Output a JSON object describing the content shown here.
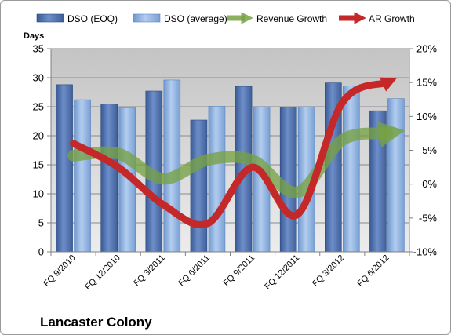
{
  "chart_data": {
    "type": "bar",
    "title": "Lancaster Colony",
    "ylabel": "Days",
    "y2label": "",
    "ylim": [
      0,
      35
    ],
    "y2lim": [
      -10,
      20
    ],
    "yticks": [
      0,
      5,
      10,
      15,
      20,
      25,
      30,
      35
    ],
    "y2ticks": [
      "-10%",
      "-5%",
      "0%",
      "5%",
      "10%",
      "15%",
      "20%"
    ],
    "y2tick_values": [
      -10,
      -5,
      0,
      5,
      10,
      15,
      20
    ],
    "categories": [
      "FQ 9/2010",
      "FQ 12/2010",
      "FQ 3/2011",
      "FQ 6/2011",
      "FQ 9/2011",
      "FQ 12/2011",
      "FQ 3/2012",
      "FQ 6/2012"
    ],
    "series": [
      {
        "name": "DSO (EOQ)",
        "kind": "bar",
        "axis": "left",
        "color": "#4f6fa8",
        "values": [
          28.8,
          25.5,
          27.7,
          22.7,
          28.5,
          24.9,
          29.1,
          24.3
        ]
      },
      {
        "name": "DSO (average)",
        "kind": "bar",
        "axis": "left",
        "color": "#8db1e0",
        "values": [
          26.2,
          24.8,
          29.6,
          25.1,
          25.0,
          25.0,
          28.6,
          26.4
        ]
      },
      {
        "name": "Revenue Growth",
        "kind": "line",
        "axis": "right",
        "color": "#77a244",
        "values": [
          4.2,
          4.5,
          0.8,
          3.6,
          3.5,
          -1.2,
          6.5,
          7.5
        ]
      },
      {
        "name": "AR Growth",
        "kind": "line",
        "axis": "right",
        "color": "#c42828",
        "values": [
          6.0,
          2.5,
          -3.0,
          -5.8,
          2.5,
          -4.5,
          12.0,
          15.0
        ]
      }
    ],
    "grid": true,
    "legend_position": "top"
  }
}
